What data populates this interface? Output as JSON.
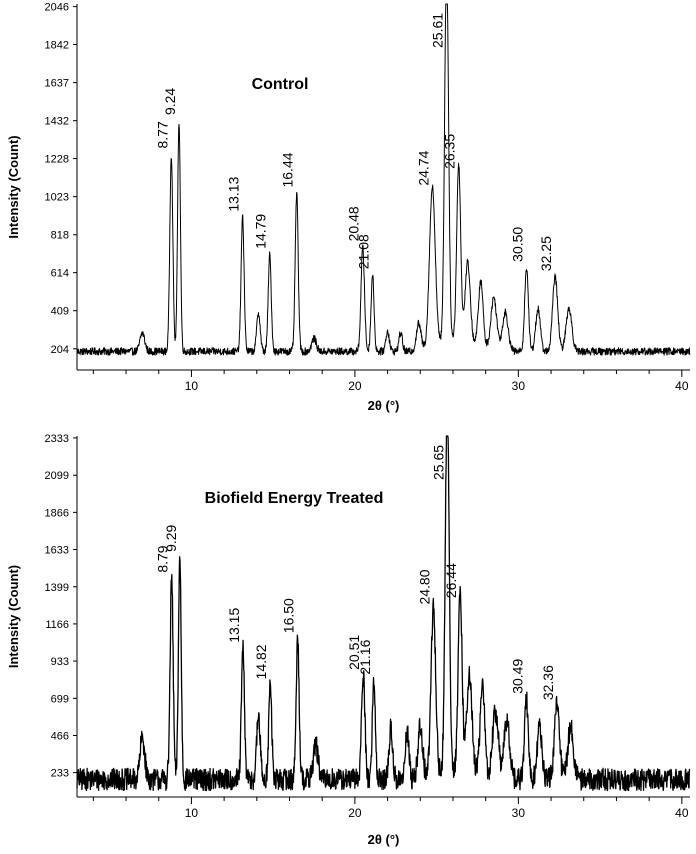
{
  "chart_data": [
    {
      "type": "line",
      "title": "Control",
      "xlabel": "2θ (°)",
      "ylabel": "Intensity (Count)",
      "xlim": [
        3,
        40.5
      ],
      "ylim": [
        90,
        2060
      ],
      "x_ticks": [
        10,
        20,
        30,
        40
      ],
      "y_ticks": [
        204,
        409,
        614,
        818,
        1023,
        1228,
        1432,
        1637,
        1842,
        2046
      ],
      "baseline": 190,
      "noise": 20,
      "peaks": [
        {
          "x": 7.0,
          "height": 100,
          "width": 0.2
        },
        {
          "x": 8.77,
          "height": 1060,
          "width": 0.13,
          "label": "8.77"
        },
        {
          "x": 9.24,
          "height": 1240,
          "width": 0.12,
          "label": "9.24"
        },
        {
          "x": 13.13,
          "height": 720,
          "width": 0.13,
          "label": "13.13"
        },
        {
          "x": 14.1,
          "height": 210,
          "width": 0.15
        },
        {
          "x": 14.79,
          "height": 520,
          "width": 0.13,
          "label": "14.79"
        },
        {
          "x": 16.44,
          "height": 850,
          "width": 0.13,
          "label": "16.44"
        },
        {
          "x": 17.5,
          "height": 70,
          "width": 0.2
        },
        {
          "x": 20.48,
          "height": 560,
          "width": 0.15,
          "label": "20.48"
        },
        {
          "x": 21.08,
          "height": 410,
          "width": 0.13,
          "label": "21.08"
        },
        {
          "x": 22.0,
          "height": 110,
          "width": 0.15
        },
        {
          "x": 22.8,
          "height": 100,
          "width": 0.15
        },
        {
          "x": 23.9,
          "height": 150,
          "width": 0.2
        },
        {
          "x": 24.74,
          "height": 860,
          "width": 0.25,
          "label": "24.74"
        },
        {
          "x": 25.61,
          "height": 2046,
          "width": 0.17,
          "label": "25.61"
        },
        {
          "x": 26.35,
          "height": 950,
          "width": 0.17,
          "label": "26.35"
        },
        {
          "x": 26.9,
          "height": 430,
          "width": 0.22
        },
        {
          "x": 27.7,
          "height": 350,
          "width": 0.2
        },
        {
          "x": 28.5,
          "height": 280,
          "width": 0.25
        },
        {
          "x": 29.2,
          "height": 210,
          "width": 0.25
        },
        {
          "x": 30.5,
          "height": 450,
          "width": 0.16,
          "label": "30.50"
        },
        {
          "x": 31.2,
          "height": 230,
          "width": 0.2
        },
        {
          "x": 32.25,
          "height": 400,
          "width": 0.22,
          "label": "32.25"
        },
        {
          "x": 33.1,
          "height": 230,
          "width": 0.25
        }
      ]
    },
    {
      "type": "line",
      "title": "Biofield Energy Treated",
      "xlabel": "2θ (°)",
      "ylabel": "Intensity (Count)",
      "xlim": [
        3,
        40.5
      ],
      "ylim": [
        80,
        2345
      ],
      "x_ticks": [
        10,
        20,
        30,
        40
      ],
      "y_ticks": [
        233,
        466,
        699,
        933,
        1166,
        1399,
        1633,
        1866,
        2099,
        2333
      ],
      "baseline": 190,
      "noise": 70,
      "peaks": [
        {
          "x": 7.0,
          "height": 260,
          "width": 0.2
        },
        {
          "x": 8.79,
          "height": 1260,
          "width": 0.13,
          "label": "8.79"
        },
        {
          "x": 9.29,
          "height": 1390,
          "width": 0.12,
          "label": "9.29"
        },
        {
          "x": 13.15,
          "height": 820,
          "width": 0.13,
          "label": "13.15"
        },
        {
          "x": 14.1,
          "height": 400,
          "width": 0.15
        },
        {
          "x": 14.82,
          "height": 590,
          "width": 0.13,
          "label": "14.82"
        },
        {
          "x": 16.5,
          "height": 880,
          "width": 0.13,
          "label": "16.50"
        },
        {
          "x": 17.6,
          "height": 220,
          "width": 0.2
        },
        {
          "x": 20.51,
          "height": 650,
          "width": 0.15,
          "label": "20.51"
        },
        {
          "x": 21.16,
          "height": 620,
          "width": 0.13,
          "label": "21.16"
        },
        {
          "x": 22.2,
          "height": 320,
          "width": 0.15
        },
        {
          "x": 23.2,
          "height": 300,
          "width": 0.15
        },
        {
          "x": 24.0,
          "height": 330,
          "width": 0.2
        },
        {
          "x": 24.8,
          "height": 1060,
          "width": 0.2,
          "label": "24.80"
        },
        {
          "x": 25.65,
          "height": 2333,
          "width": 0.17,
          "label": "25.65"
        },
        {
          "x": 26.44,
          "height": 1100,
          "width": 0.17,
          "label": "26.44"
        },
        {
          "x": 27.0,
          "height": 620,
          "width": 0.22
        },
        {
          "x": 27.8,
          "height": 560,
          "width": 0.2
        },
        {
          "x": 28.6,
          "height": 420,
          "width": 0.25
        },
        {
          "x": 29.3,
          "height": 360,
          "width": 0.25
        },
        {
          "x": 30.49,
          "height": 500,
          "width": 0.16,
          "label": "30.49"
        },
        {
          "x": 31.3,
          "height": 330,
          "width": 0.2
        },
        {
          "x": 32.36,
          "height": 460,
          "width": 0.22,
          "label": "32.36"
        },
        {
          "x": 33.2,
          "height": 330,
          "width": 0.25
        }
      ]
    }
  ]
}
